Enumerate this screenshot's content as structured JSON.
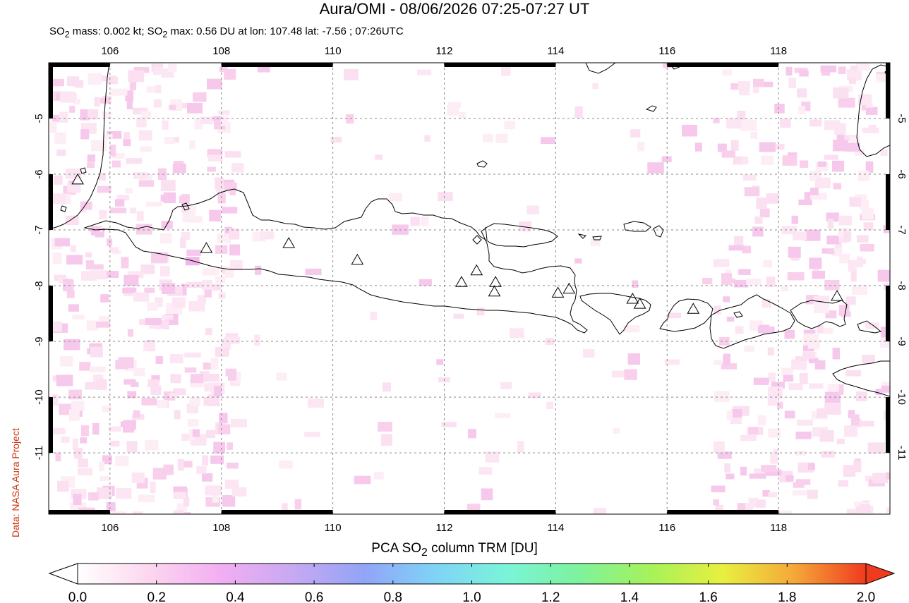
{
  "title": "Aura/OMI - 08/06/2026 07:25-07:27 UT",
  "subtitle_html": "SO<sub>2</sub> mass: 0.002 kt; SO<sub>2</sub> max: 0.56 DU at lon: 107.48 lat: -7.56 ; 07:26UTC",
  "side_label": "Data: NASA Aura Project",
  "colorbar": {
    "label_html": "PCA SO<sub>2</sub> column TRM [DU]",
    "ticks": [
      "0.0",
      "0.2",
      "0.4",
      "0.6",
      "0.8",
      "1.0",
      "1.2",
      "1.4",
      "1.6",
      "1.8",
      "2.0"
    ],
    "min": 0.0,
    "max": 2.0,
    "colors": [
      "#ffffff",
      "#fcd6ee",
      "#f2aef2",
      "#c7a9f2",
      "#92a4f7",
      "#7fd4f7",
      "#7af4d8",
      "#7ef29c",
      "#a6f25a",
      "#e8f040",
      "#f5a83a",
      "#f03a1e"
    ]
  },
  "map": {
    "lon_range": [
      104.9,
      120.0
    ],
    "lat_range": [
      -12.1,
      -4.0
    ],
    "lon_ticks": [
      106,
      108,
      110,
      112,
      114,
      116,
      118
    ],
    "lat_ticks": [
      -5,
      -6,
      -7,
      -8,
      -9,
      -10,
      -11
    ],
    "volcanoes": [
      {
        "lon": 105.42,
        "lat": -6.1
      },
      {
        "lon": 107.73,
        "lat": -7.33
      },
      {
        "lon": 109.21,
        "lat": -7.24
      },
      {
        "lon": 110.44,
        "lat": -7.54
      },
      {
        "lon": 112.31,
        "lat": -7.94
      },
      {
        "lon": 112.58,
        "lat": -7.73
      },
      {
        "lon": 112.92,
        "lat": -7.94
      },
      {
        "lon": 112.9,
        "lat": -8.11
      },
      {
        "lon": 114.04,
        "lat": -8.13
      },
      {
        "lon": 114.24,
        "lat": -8.06
      },
      {
        "lon": 115.38,
        "lat": -8.24
      },
      {
        "lon": 115.51,
        "lat": -8.33
      },
      {
        "lon": 116.47,
        "lat": -8.42
      },
      {
        "lon": 119.05,
        "lat": -8.19
      }
    ],
    "max_marker": {
      "lon": 107.48,
      "lat": -7.56
    }
  }
}
